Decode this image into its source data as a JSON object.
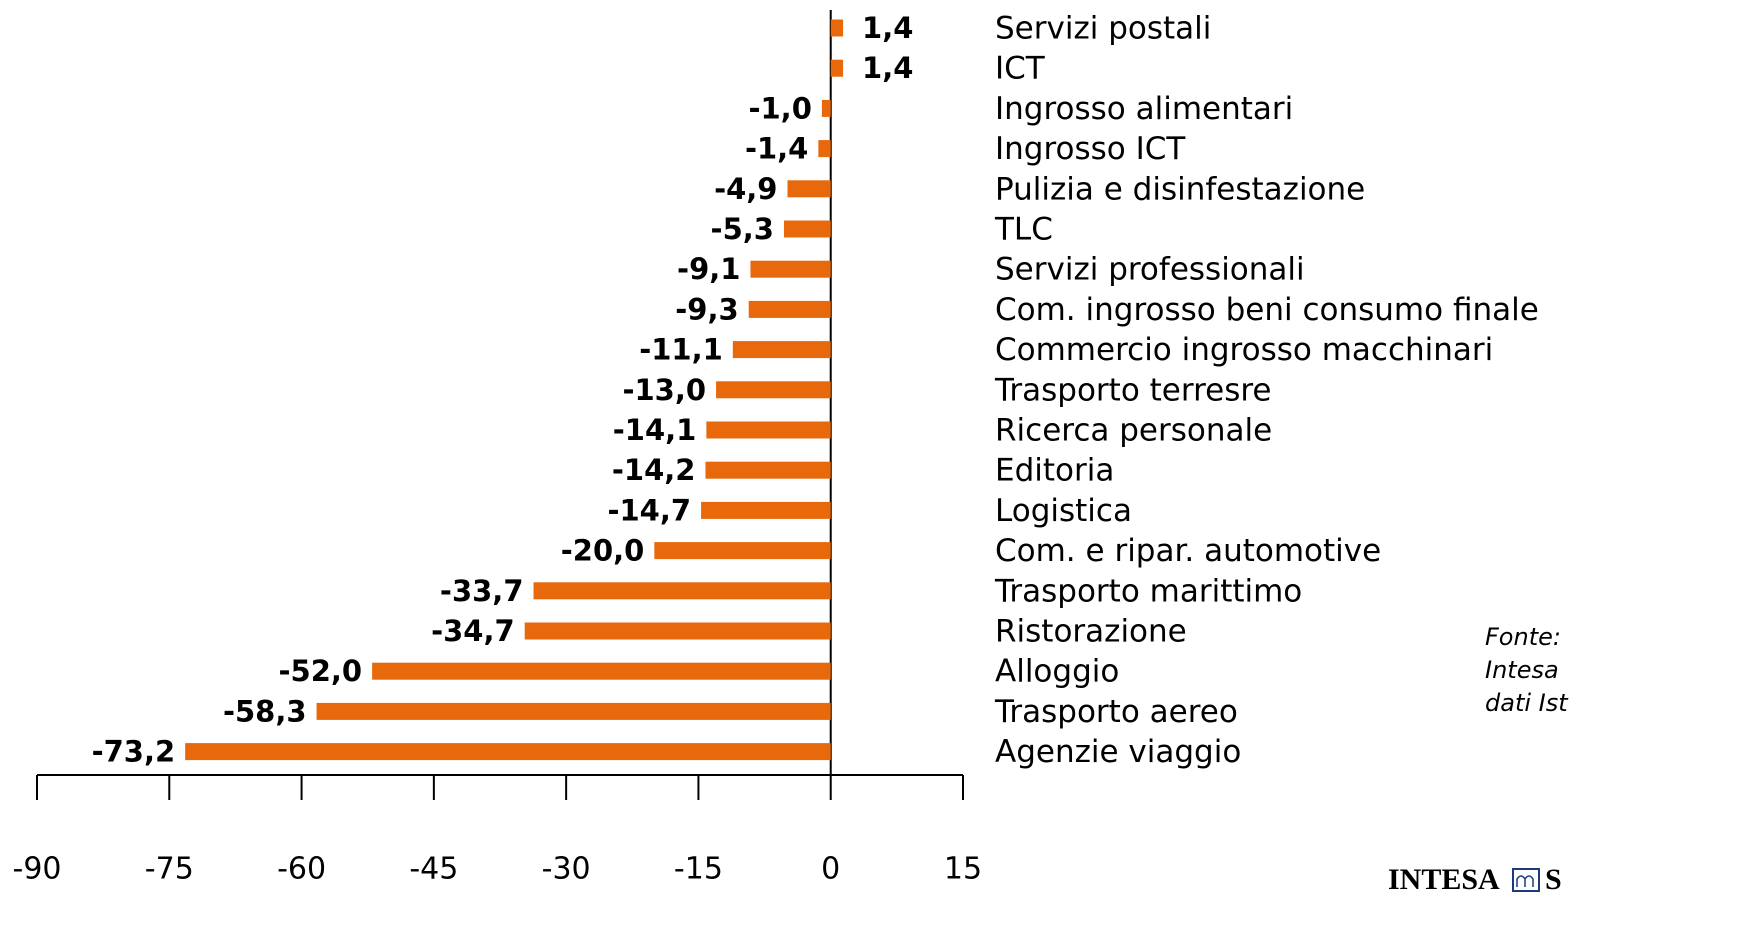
{
  "chart_data": {
    "type": "barh",
    "categories": [
      "Servizi postali",
      "ICT",
      "Ingrosso alimentari",
      "Ingrosso ICT",
      "Pulizia e disinfestazione",
      "TLC",
      "Servizi professionali",
      "Com. ingrosso beni consumo finale",
      "Commercio ingrosso macchinari",
      "Trasporto terresre",
      "Ricerca personale",
      "Editoria",
      "Logistica",
      "Com. e ripar. automotive",
      "Trasporto marittimo",
      "Ristorazione",
      "Alloggio",
      "Trasporto aereo",
      "Agenzie viaggio"
    ],
    "values": [
      1.4,
      1.4,
      -1.0,
      -1.4,
      -4.9,
      -5.3,
      -9.1,
      -9.3,
      -11.1,
      -13.0,
      -14.1,
      -14.2,
      -14.7,
      -20.0,
      -33.7,
      -34.7,
      -52.0,
      -58.3,
      -73.2
    ],
    "value_labels": [
      "1,4",
      "1,4",
      "-1,0",
      "-1,4",
      "-4,9",
      "-5,3",
      "-9,1",
      "-9,3",
      "-11,1",
      "-13,0",
      "-14,1",
      "-14,2",
      "-14,7",
      "-20,0",
      "-33,7",
      "-34,7",
      "-52,0",
      "-58,3",
      "-73,2"
    ],
    "color": "#e8690b",
    "xlim": [
      -90,
      15
    ],
    "xticks": [
      -90,
      -75,
      -60,
      -45,
      -30,
      -15,
      0,
      15
    ],
    "source": [
      "Fonte:",
      "Intesa",
      "dati Ist"
    ],
    "logo": [
      "INTESA",
      "S"
    ]
  }
}
